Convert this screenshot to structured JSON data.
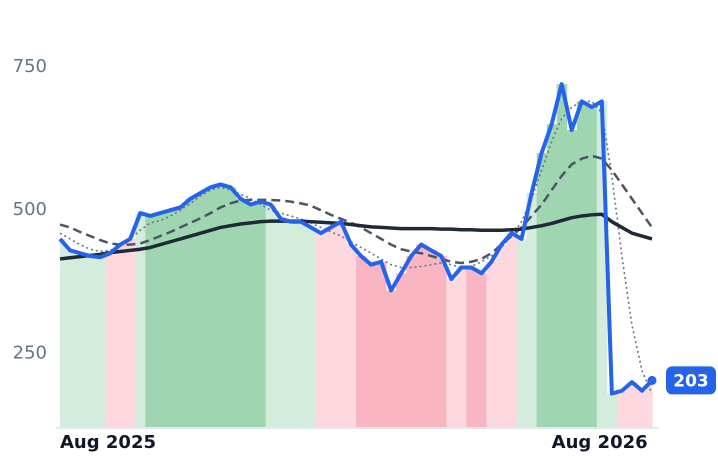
{
  "chart_data": {
    "type": "line",
    "categories": [
      "Aug 2025",
      null,
      null,
      null,
      null,
      null,
      null,
      null,
      null,
      null,
      null,
      null,
      null,
      null,
      null,
      null,
      null,
      null,
      null,
      null,
      null,
      null,
      null,
      null,
      null,
      null,
      null,
      null,
      null,
      null,
      null,
      null,
      null,
      null,
      null,
      null,
      null,
      null,
      null,
      null,
      null,
      null,
      null,
      null,
      null,
      null,
      null,
      null,
      null,
      "Aug 2026",
      null,
      null,
      null,
      null,
      null,
      null,
      null,
      null,
      null,
      null
    ],
    "series": [
      {
        "color": "#2563eb",
        "style": "solid",
        "width": 4,
        "values": [
          450,
          430,
          425,
          420,
          418,
          425,
          440,
          450,
          495,
          490,
          495,
          500,
          505,
          520,
          530,
          540,
          545,
          540,
          520,
          510,
          515,
          510,
          485,
          480,
          480,
          470,
          460,
          470,
          480,
          440,
          420,
          405,
          410,
          360,
          390,
          420,
          440,
          430,
          420,
          380,
          400,
          400,
          390,
          410,
          440,
          460,
          450,
          530,
          600,
          650,
          720,
          640,
          690,
          680,
          690,
          180,
          185,
          200,
          185,
          203
        ]
      },
      {
        "color": "#1f2937",
        "style": "solid",
        "width": 3.5,
        "values": [
          415,
          417,
          419,
          421,
          423,
          426,
          428,
          430,
          432,
          435,
          440,
          445,
          450,
          455,
          460,
          465,
          470,
          473,
          476,
          478,
          480,
          481,
          481,
          481,
          481,
          480,
          479,
          478,
          477,
          475,
          473,
          471,
          470,
          469,
          468,
          468,
          468,
          468,
          467,
          467,
          466,
          466,
          465,
          465,
          465,
          466,
          467,
          470,
          473,
          477,
          482,
          487,
          490,
          492,
          493,
          480,
          470,
          460,
          455,
          450
        ]
      },
      {
        "color": "#4b5563",
        "style": "dashed",
        "width": 2.5,
        "values": [
          475,
          470,
          462,
          455,
          448,
          442,
          440,
          440,
          442,
          448,
          455,
          462,
          470,
          478,
          486,
          495,
          505,
          512,
          517,
          518,
          518,
          518,
          517,
          515,
          512,
          508,
          500,
          492,
          485,
          478,
          470,
          460,
          450,
          440,
          432,
          428,
          425,
          420,
          415,
          410,
          408,
          410,
          415,
          425,
          440,
          455,
          470,
          490,
          510,
          535,
          560,
          580,
          590,
          595,
          590,
          570,
          545,
          520,
          495,
          470
        ]
      },
      {
        "color": "#6b7280",
        "style": "dotted",
        "width": 1.6,
        "values": [
          460,
          450,
          440,
          432,
          428,
          430,
          438,
          450,
          465,
          478,
          482,
          490,
          500,
          512,
          525,
          535,
          540,
          535,
          528,
          520,
          510,
          500,
          495,
          490,
          485,
          478,
          470,
          462,
          455,
          445,
          435,
          425,
          415,
          405,
          400,
          400,
          402,
          405,
          408,
          405,
          400,
          402,
          410,
          420,
          435,
          455,
          480,
          520,
          570,
          620,
          660,
          680,
          690,
          690,
          670,
          560,
          420,
          300,
          220,
          180
        ]
      }
    ],
    "band_colors": [
      "#d3ecdb",
      "#d3ecdb",
      "#d3ecdb",
      "#d3ecdb",
      "#d3ecdb",
      "#fdd9df",
      "#fdd9df",
      "#fdd9df",
      "#d3ecdb",
      "#9fd6b1",
      "#9fd6b1",
      "#9fd6b1",
      "#9fd6b1",
      "#9fd6b1",
      "#9fd6b1",
      "#9fd6b1",
      "#9fd6b1",
      "#9fd6b1",
      "#9fd6b1",
      "#9fd6b1",
      "#9fd6b1",
      "#d3ecdb",
      "#d3ecdb",
      "#d3ecdb",
      "#d3ecdb",
      "#d3ecdb",
      "#fdd9df",
      "#fdd9df",
      "#fdd9df",
      "#fdd9df",
      "#f9b6c2",
      "#f9b6c2",
      "#f9b6c2",
      "#f9b6c2",
      "#f9b6c2",
      "#f9b6c2",
      "#f9b6c2",
      "#f9b6c2",
      "#f9b6c2",
      "#fdd9df",
      "#fdd9df",
      "#f9b6c2",
      "#f9b6c2",
      "#fdd9df",
      "#fdd9df",
      "#fdd9df",
      "#d3ecdb",
      "#d3ecdb",
      "#9fd6b1",
      "#9fd6b1",
      "#9fd6b1",
      "#9fd6b1",
      "#9fd6b1",
      "#9fd6b1",
      "#d3ecdb",
      "#d3ecdb",
      "#fdd9df",
      "#fdd9df",
      "#fdd9df",
      "#fdd9df"
    ],
    "ylim": [
      120,
      800
    ],
    "yticks": [
      250,
      500,
      750
    ]
  }
}
